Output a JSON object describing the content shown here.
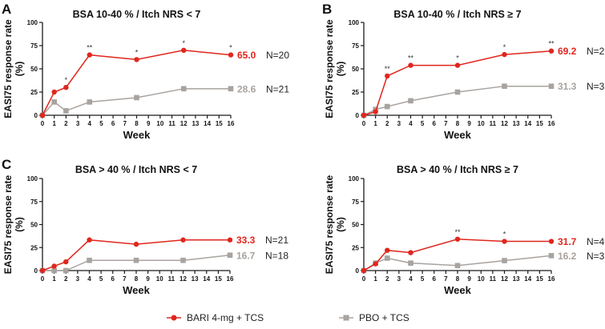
{
  "colors": {
    "bari": "#e0261d",
    "pbo": "#a8a39f",
    "axis": "#1a1a1a"
  },
  "legend": {
    "placement": "bottom",
    "items": [
      {
        "label": "BARI 4-mg + TCS",
        "marker": "circle",
        "color": "#e0261d"
      },
      {
        "label": "PBO + TCS",
        "marker": "square",
        "color": "#a8a39f"
      }
    ]
  },
  "chart_data": [
    {
      "type": "line",
      "panel_label": "A",
      "title": "BSA 10-40 % / Itch NRS < 7",
      "xlabel": "Week",
      "ylabel": "EASI75 response rate (%)",
      "xlim": [
        0,
        16
      ],
      "ylim": [
        0,
        100
      ],
      "x_ticks": [
        0,
        1,
        2,
        3,
        4,
        5,
        6,
        7,
        8,
        9,
        10,
        11,
        12,
        13,
        14,
        15,
        16
      ],
      "y_ticks": [
        0,
        25,
        50,
        75,
        100
      ],
      "x": [
        0,
        1,
        2,
        4,
        8,
        12,
        16
      ],
      "series": [
        {
          "key": "bari",
          "values": [
            0,
            25,
            30,
            65,
            60,
            70,
            65
          ],
          "end_label": "65.0",
          "n_label": "N=20"
        },
        {
          "key": "pbo",
          "values": [
            0,
            14.3,
            4.8,
            14.3,
            19,
            28.6,
            28.6
          ],
          "end_label": "28.6",
          "n_label": "N=21"
        }
      ],
      "annotations": [
        {
          "x": 2,
          "text": "*"
        },
        {
          "x": 4,
          "text": "**"
        },
        {
          "x": 8,
          "text": "*"
        },
        {
          "x": 12,
          "text": "*"
        },
        {
          "x": 16,
          "text": "*"
        }
      ]
    },
    {
      "type": "line",
      "panel_label": "B",
      "title": "BSA 10-40 % / Itch NRS ≥ 7",
      "xlabel": "Week",
      "ylabel": "EASI75 response rate (%)",
      "xlim": [
        0,
        16
      ],
      "ylim": [
        0,
        100
      ],
      "x_ticks": [
        0,
        1,
        2,
        3,
        4,
        5,
        6,
        7,
        8,
        9,
        10,
        11,
        12,
        13,
        14,
        15,
        16
      ],
      "y_ticks": [
        0,
        25,
        50,
        75,
        100
      ],
      "x": [
        0,
        1,
        2,
        4,
        8,
        12,
        16
      ],
      "series": [
        {
          "key": "bari",
          "values": [
            0,
            3.8,
            42.3,
            53.8,
            53.8,
            65.4,
            69.2
          ],
          "end_label": "69.2",
          "n_label": "N=26"
        },
        {
          "key": "pbo",
          "values": [
            0,
            6.3,
            9.4,
            15.6,
            25,
            31.3,
            31.3
          ],
          "end_label": "31.3",
          "n_label": "N=32"
        }
      ],
      "annotations": [
        {
          "x": 2,
          "text": "**"
        },
        {
          "x": 4,
          "text": "**"
        },
        {
          "x": 8,
          "text": "*"
        },
        {
          "x": 12,
          "text": "*"
        },
        {
          "x": 16,
          "text": "**"
        }
      ]
    },
    {
      "type": "line",
      "panel_label": "C",
      "title": "BSA > 40 % / Itch NRS < 7",
      "xlabel": "Week",
      "ylabel": "EASI75 response rate (%)",
      "xlim": [
        0,
        16
      ],
      "ylim": [
        0,
        100
      ],
      "x_ticks": [
        0,
        1,
        2,
        3,
        4,
        5,
        6,
        7,
        8,
        9,
        10,
        11,
        12,
        13,
        14,
        15,
        16
      ],
      "y_ticks": [
        0,
        25,
        50,
        75,
        100
      ],
      "x": [
        0,
        1,
        2,
        4,
        8,
        12,
        16
      ],
      "series": [
        {
          "key": "bari",
          "values": [
            0,
            4.8,
            9.5,
            33.3,
            28.6,
            33.3,
            33.3
          ],
          "end_label": "33.3",
          "n_label": "N=21"
        },
        {
          "key": "pbo",
          "values": [
            0,
            0,
            0,
            11.1,
            11.1,
            11.1,
            16.7
          ],
          "end_label": "16.7",
          "n_label": "N=18"
        }
      ],
      "annotations": []
    },
    {
      "type": "line",
      "panel_label": "",
      "title": "BSA > 40 % / Itch NRS ≥ 7",
      "xlabel": "Week",
      "ylabel": "EASI75 response rate (%)",
      "xlim": [
        0,
        16
      ],
      "ylim": [
        0,
        100
      ],
      "x_ticks": [
        0,
        1,
        2,
        3,
        4,
        5,
        6,
        7,
        8,
        9,
        10,
        11,
        12,
        13,
        14,
        15,
        16
      ],
      "y_ticks": [
        0,
        25,
        50,
        75,
        100
      ],
      "x": [
        0,
        1,
        2,
        4,
        8,
        12,
        16
      ],
      "series": [
        {
          "key": "bari",
          "values": [
            0,
            7.3,
            22,
            19.5,
            34.1,
            31.7,
            31.7
          ],
          "end_label": "31.7",
          "n_label": "N=41"
        },
        {
          "key": "pbo",
          "values": [
            0,
            8.1,
            13.5,
            8.1,
            5.4,
            10.8,
            16.2
          ],
          "end_label": "16.2",
          "n_label": "N=37"
        }
      ],
      "annotations": [
        {
          "x": 8,
          "text": "**"
        },
        {
          "x": 12,
          "text": "*"
        }
      ]
    }
  ]
}
